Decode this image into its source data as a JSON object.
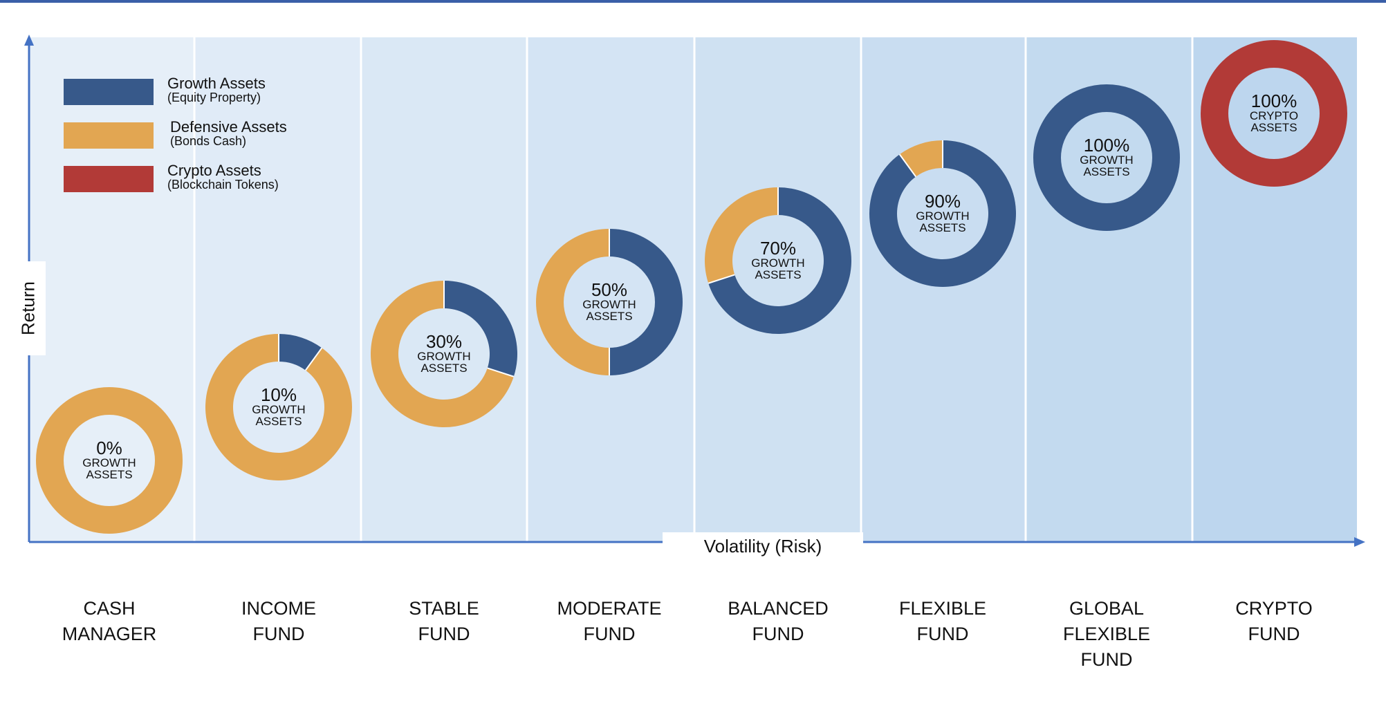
{
  "chart_data": {
    "type": "donut-scatter",
    "xlabel": "Volatility (Risk)",
    "ylabel": "Return",
    "legend": [
      {
        "label": "Growth Assets",
        "sub": "(Equity Property)",
        "color": "#37598A"
      },
      {
        "label": "Defensive Assets",
        "sub": "(Bonds Cash)",
        "color": "#E2A652"
      },
      {
        "label": "Crypto Assets",
        "sub": "(Blockchain Tokens)",
        "color": "#B23A37"
      }
    ],
    "funds": [
      {
        "name": "CASH\nMANAGER",
        "pct_text": "0%",
        "caption1": "GROWTH",
        "caption2": "ASSETS",
        "growth": 0,
        "defensive": 100,
        "crypto": 0
      },
      {
        "name": "INCOME\nFUND",
        "pct_text": "10%",
        "caption1": "GROWTH",
        "caption2": "ASSETS",
        "growth": 10,
        "defensive": 90,
        "crypto": 0
      },
      {
        "name": "STABLE\nFUND",
        "pct_text": "30%",
        "caption1": "GROWTH",
        "caption2": "ASSETS",
        "growth": 30,
        "defensive": 70,
        "crypto": 0
      },
      {
        "name": "MODERATE\nFUND",
        "pct_text": "50%",
        "caption1": "GROWTH",
        "caption2": "ASSETS",
        "growth": 50,
        "defensive": 50,
        "crypto": 0
      },
      {
        "name": "BALANCED\nFUND",
        "pct_text": "70%",
        "caption1": "GROWTH",
        "caption2": "ASSETS",
        "growth": 70,
        "defensive": 30,
        "crypto": 0
      },
      {
        "name": "FLEXIBLE\nFUND",
        "pct_text": "90%",
        "caption1": "GROWTH",
        "caption2": "ASSETS",
        "growth": 90,
        "defensive": 10,
        "crypto": 0
      },
      {
        "name": "GLOBAL\nFLEXIBLE\nFUND",
        "pct_text": "100%",
        "caption1": "GROWTH",
        "caption2": "ASSETS",
        "growth": 100,
        "defensive": 0,
        "crypto": 0
      },
      {
        "name": "CRYPTO\nFUND",
        "pct_text": "100%",
        "caption1": "CRYPTO",
        "caption2": "ASSETS",
        "growth": 0,
        "defensive": 0,
        "crypto": 100
      }
    ],
    "colors": {
      "axis": "#4472C4",
      "band_light": "#E6EFF8",
      "band_dark": "#BDD6EE",
      "divider": "#FFFFFF"
    }
  }
}
